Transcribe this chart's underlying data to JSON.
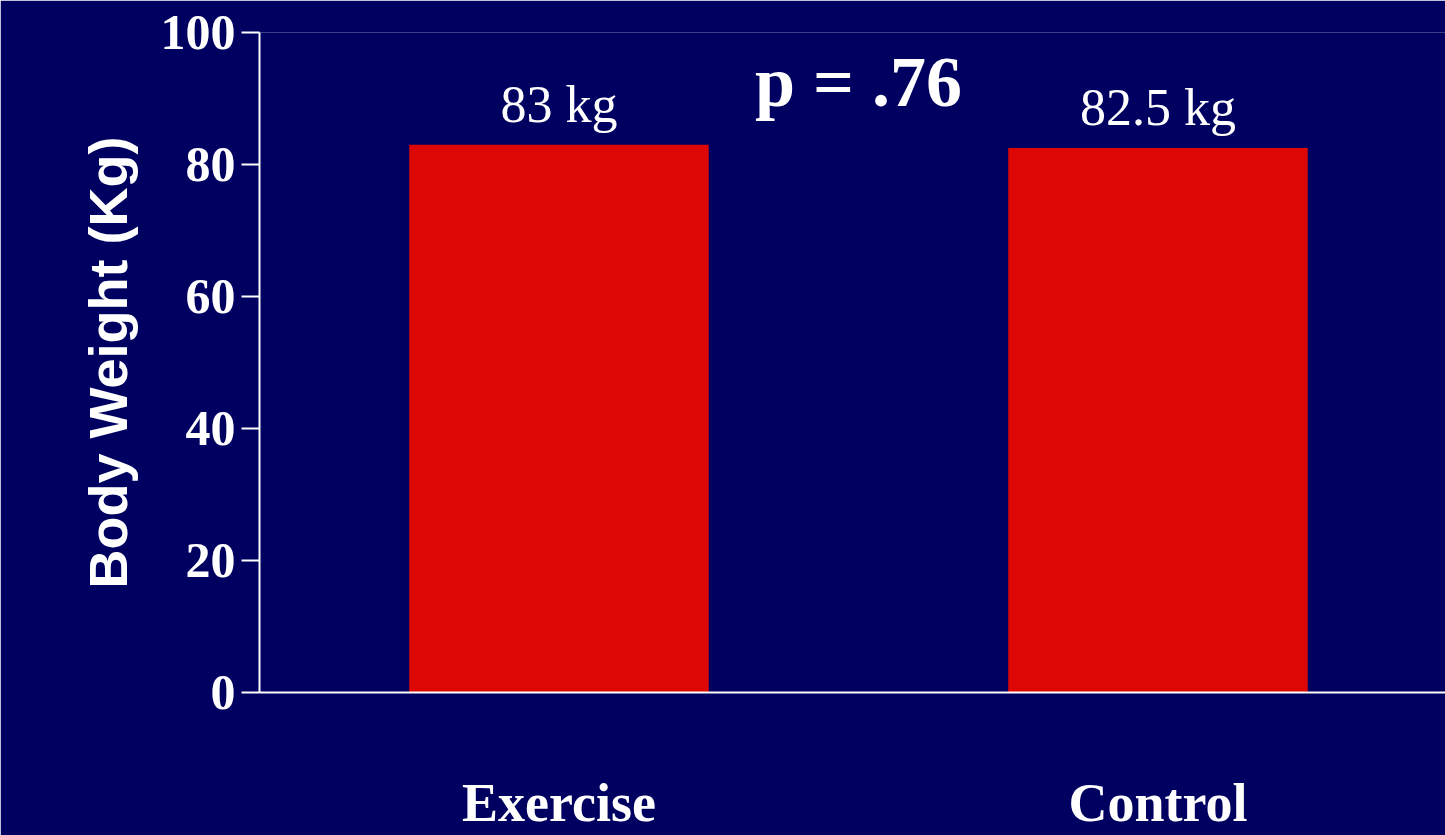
{
  "chart_data": {
    "type": "bar",
    "ylabel": "Body Weight (Kg)",
    "categories": [
      "Exercise",
      "Control"
    ],
    "values": [
      83,
      82.5
    ],
    "value_labels": [
      "83 kg",
      "82.5 kg"
    ],
    "color": "#dd0805",
    "ylim": [
      0,
      100
    ],
    "yticks": [
      0,
      20,
      40,
      60,
      80,
      100
    ],
    "grid": false,
    "annotations": [
      "p = .76"
    ]
  }
}
